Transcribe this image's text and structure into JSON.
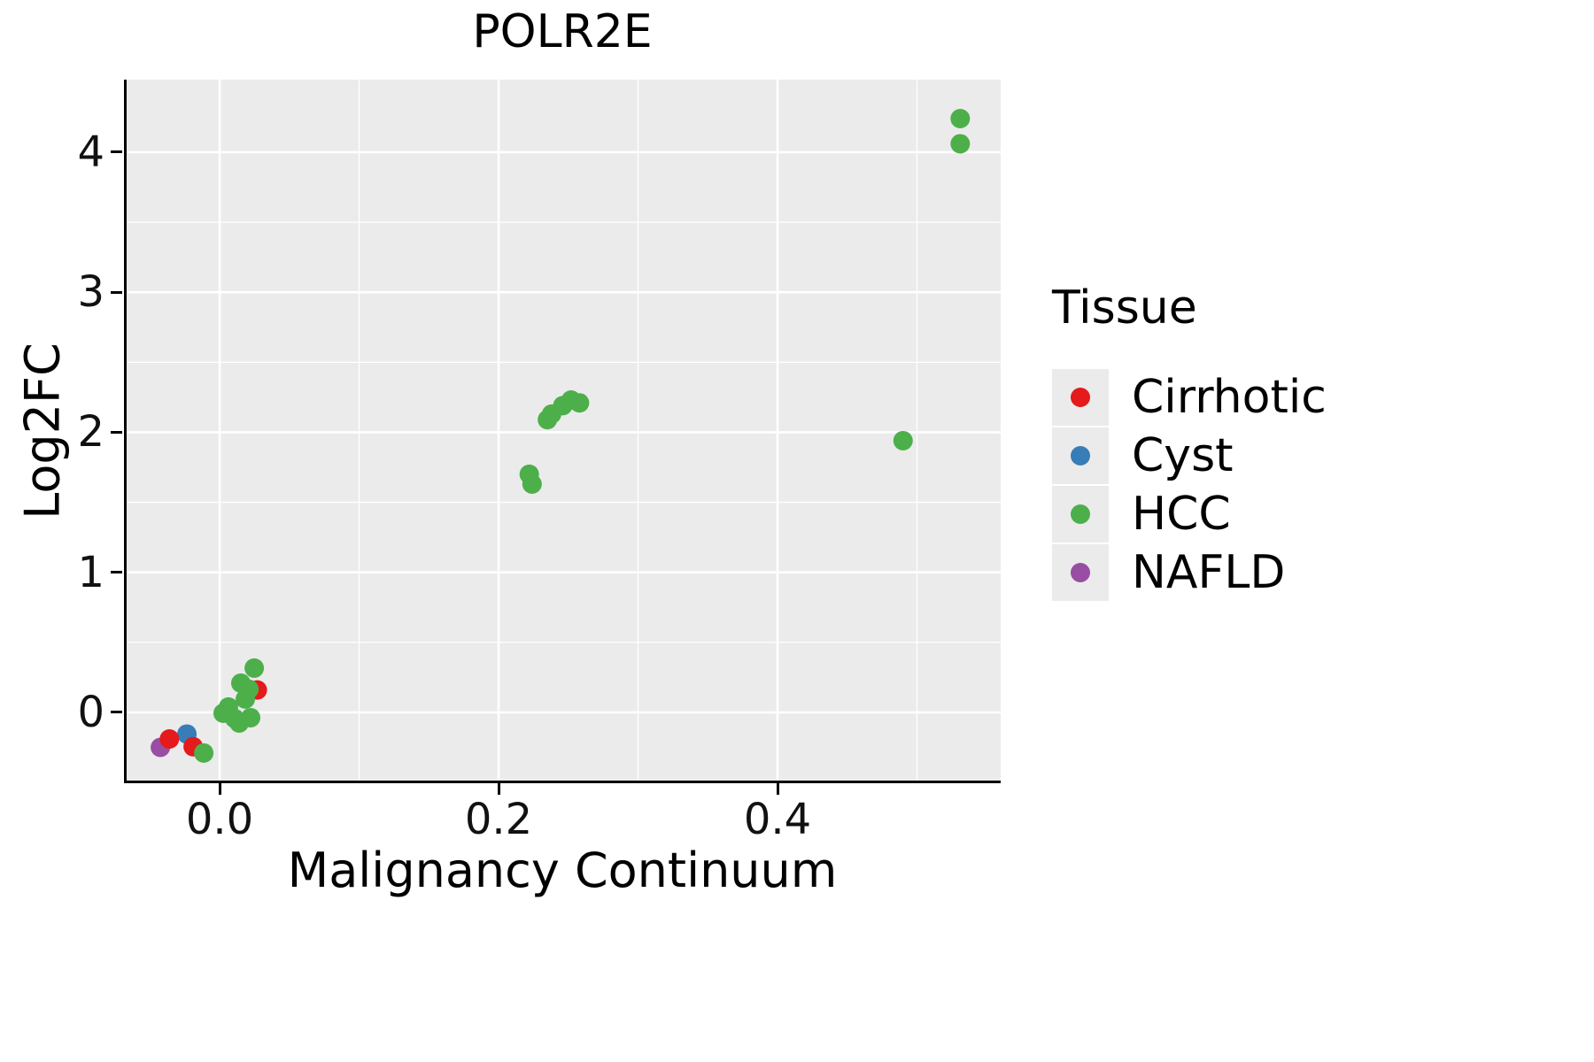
{
  "legend": {
    "title": "Tissue",
    "items": [
      {
        "label": "Cirrhotic",
        "color": "#E41A1C"
      },
      {
        "label": "Cyst",
        "color": "#377EB8"
      },
      {
        "label": "HCC",
        "color": "#4DAF4A"
      },
      {
        "label": "NAFLD",
        "color": "#984EA3"
      }
    ]
  },
  "chart_data": {
    "type": "scatter",
    "title": "POLR2E",
    "xlabel": "Malignancy Continuum",
    "ylabel": "Log2FC",
    "xlim": [
      -0.0686,
      0.56
    ],
    "ylim": [
      -0.506,
      4.518
    ],
    "x_ticks": [
      0.0,
      0.2,
      0.4
    ],
    "x_tick_labels": [
      "0.0",
      "0.2",
      "0.4"
    ],
    "y_ticks": [
      0,
      1,
      2,
      3,
      4
    ],
    "y_tick_labels": [
      "0",
      "1",
      "2",
      "3",
      "4"
    ],
    "x_minor": [
      0.1,
      0.3,
      0.5
    ],
    "y_minor": [
      0.5,
      1.5,
      2.5,
      3.5
    ],
    "panel_background": "#EBEBEB",
    "grid_color": "#FFFFFF",
    "legend_position": "right",
    "series": [
      {
        "name": "NAFLD",
        "color": "#984EA3",
        "points": [
          [
            -0.0425,
            -0.25
          ]
        ]
      },
      {
        "name": "Cyst",
        "color": "#377EB8",
        "points": [
          [
            -0.0235,
            -0.155
          ]
        ]
      },
      {
        "name": "Cirrhotic",
        "color": "#E41A1C",
        "points": [
          [
            -0.036,
            -0.19
          ],
          [
            -0.019,
            -0.245
          ],
          [
            0.027,
            0.16
          ]
        ]
      },
      {
        "name": "HCC",
        "color": "#4DAF4A",
        "points": [
          [
            0.531,
            4.24
          ],
          [
            0.531,
            4.06
          ],
          [
            0.49,
            1.94
          ],
          [
            0.235,
            2.09
          ],
          [
            0.238,
            2.13
          ],
          [
            0.246,
            2.19
          ],
          [
            0.252,
            2.23
          ],
          [
            0.258,
            2.21
          ],
          [
            0.222,
            1.7
          ],
          [
            0.224,
            1.63
          ],
          [
            0.0248,
            0.316
          ],
          [
            0.0152,
            0.209
          ],
          [
            0.021,
            0.165
          ],
          [
            0.0184,
            0.095
          ],
          [
            0.0063,
            0.038
          ],
          [
            0.0025,
            -0.006
          ],
          [
            0.0108,
            -0.044
          ],
          [
            0.014,
            -0.076
          ],
          [
            0.0222,
            -0.038
          ],
          [
            -0.0114,
            -0.29
          ]
        ]
      }
    ]
  }
}
